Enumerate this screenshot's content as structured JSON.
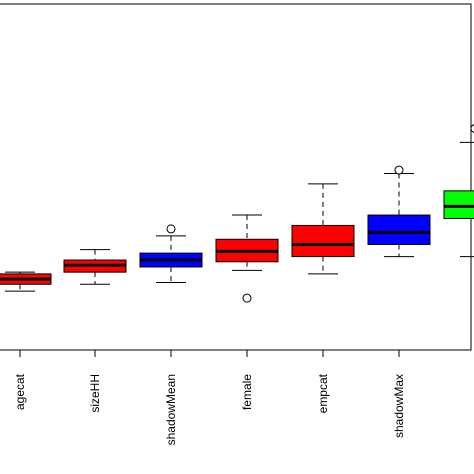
{
  "chart_data": {
    "type": "box",
    "title": "",
    "xlabel": "",
    "ylabel": "",
    "ylim": [
      0,
      1
    ],
    "grid": false,
    "legend": "none",
    "categories": [
      "agecat",
      "sizeHH",
      "shadowMean",
      "female",
      "empcat",
      "shadowMax",
      ""
    ],
    "colors": [
      "#ff0000",
      "#ff0000",
      "#0000ff",
      "#ff0000",
      "#ff0000",
      "#0000ff",
      "#00ff00"
    ],
    "boxes": [
      {
        "category": "agecat",
        "min": 0.17,
        "q1": 0.19,
        "median": 0.205,
        "q3": 0.22,
        "max": 0.225,
        "outliers": []
      },
      {
        "category": "sizeHH",
        "min": 0.19,
        "q1": 0.225,
        "median": 0.245,
        "q3": 0.26,
        "max": 0.29,
        "outliers": []
      },
      {
        "category": "shadowMean",
        "min": 0.195,
        "q1": 0.24,
        "median": 0.26,
        "q3": 0.28,
        "max": 0.33,
        "outliers": [
          0.35
        ]
      },
      {
        "category": "female",
        "min": 0.23,
        "q1": 0.255,
        "median": 0.285,
        "q3": 0.32,
        "max": 0.39,
        "outliers": [
          0.15
        ]
      },
      {
        "category": "empcat",
        "min": 0.22,
        "q1": 0.27,
        "median": 0.305,
        "q3": 0.36,
        "max": 0.48,
        "outliers": []
      },
      {
        "category": "shadowMax",
        "min": 0.27,
        "q1": 0.305,
        "median": 0.34,
        "q3": 0.39,
        "max": 0.51,
        "outliers": [
          0.52
        ]
      },
      {
        "category": "",
        "min": 0.27,
        "q1": 0.38,
        "median": 0.415,
        "q3": 0.46,
        "max": 0.6,
        "outliers": [
          0.64
        ]
      }
    ]
  }
}
